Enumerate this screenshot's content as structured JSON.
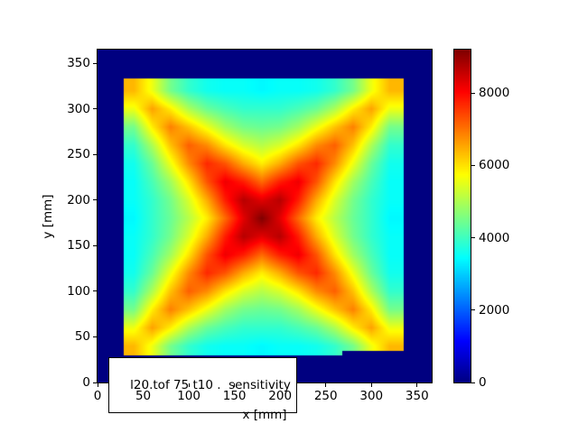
{
  "figure": {
    "background": "#ffffff",
    "frame_color": "#000000"
  },
  "chart_data": {
    "type": "heatmap",
    "title": "",
    "xlabel": "x [mm]",
    "ylabel": "y [mm]",
    "annotation": "l20.tof 75 t10 .  sensitivity",
    "colormap": "jet",
    "grid_lines": false,
    "vmin": 0,
    "vmax": 9200,
    "xlim": [
      0,
      366
    ],
    "ylim": [
      0,
      365
    ],
    "x_ticks": [
      0,
      50,
      100,
      150,
      200,
      250,
      300,
      350
    ],
    "y_ticks": [
      0,
      50,
      100,
      150,
      200,
      250,
      300,
      350
    ],
    "colorbar_ticks": [
      0,
      2000,
      4000,
      6000,
      8000
    ],
    "background_value": 0,
    "background_color": "#000080",
    "active_region": {
      "x0": 29,
      "x1": 335,
      "y0": 30,
      "y1": 333
    },
    "notch": {
      "x0": 268,
      "x1": 335,
      "y0": 30,
      "y1": 35
    },
    "grid": {
      "x_start": 40,
      "y_start": 40,
      "step": 20,
      "orientation": "values[row][col]; row 0 is y=40 (bottom), col 0 is x=40; units mm / counts",
      "values": [
        [
          6400,
          5600,
          4500,
          3900,
          3600,
          3500,
          3500,
          3400,
          3500,
          3500,
          3600,
          3900,
          4500,
          5600,
          6400
        ],
        [
          5600,
          6600,
          5900,
          5000,
          4400,
          4100,
          3900,
          3900,
          3900,
          4100,
          4400,
          5000,
          5900,
          6600,
          5600
        ],
        [
          4500,
          5900,
          6900,
          6300,
          5600,
          4900,
          4500,
          4400,
          4500,
          4900,
          5600,
          6300,
          6900,
          5900,
          4500
        ],
        [
          3900,
          5000,
          6300,
          7200,
          6800,
          6000,
          5400,
          5100,
          5400,
          6000,
          6800,
          7200,
          6300,
          5000,
          3900
        ],
        [
          3600,
          4400,
          5600,
          6800,
          7700,
          7300,
          6500,
          5900,
          6500,
          7300,
          7700,
          6800,
          5600,
          4400,
          3600
        ],
        [
          3500,
          4100,
          4900,
          6000,
          7300,
          8200,
          7800,
          7100,
          7800,
          8200,
          7300,
          6000,
          4900,
          4100,
          3500
        ],
        [
          3500,
          3900,
          4500,
          5400,
          6500,
          7800,
          8700,
          8300,
          8700,
          7800,
          6500,
          5400,
          4500,
          3900,
          3500
        ],
        [
          3400,
          3900,
          4400,
          5100,
          5900,
          7100,
          8300,
          9200,
          8300,
          7100,
          5900,
          5100,
          4400,
          3900,
          3400
        ],
        [
          3500,
          3900,
          4500,
          5400,
          6500,
          7800,
          8700,
          8300,
          8700,
          7800,
          6500,
          5400,
          4500,
          3900,
          3500
        ],
        [
          3500,
          4100,
          4900,
          6000,
          7300,
          8200,
          7800,
          7100,
          7800,
          8200,
          7300,
          6000,
          4900,
          4100,
          3500
        ],
        [
          3600,
          4400,
          5600,
          6800,
          7700,
          7300,
          6500,
          5900,
          6500,
          7300,
          7700,
          6800,
          5600,
          4400,
          3600
        ],
        [
          3900,
          5000,
          6300,
          7200,
          6800,
          6000,
          5400,
          5100,
          5400,
          6000,
          6800,
          7200,
          6300,
          5000,
          3900
        ],
        [
          4500,
          5900,
          6900,
          6300,
          5600,
          4900,
          4500,
          4400,
          4500,
          4900,
          5600,
          6300,
          6900,
          5900,
          4500
        ],
        [
          5600,
          6600,
          5900,
          5000,
          4400,
          4100,
          3900,
          3900,
          3900,
          4100,
          4400,
          5000,
          5900,
          6600,
          5600
        ],
        [
          6400,
          5600,
          4500,
          3900,
          3600,
          3500,
          3500,
          3400,
          3500,
          3500,
          3600,
          3900,
          4500,
          5600,
          6400
        ]
      ]
    }
  }
}
